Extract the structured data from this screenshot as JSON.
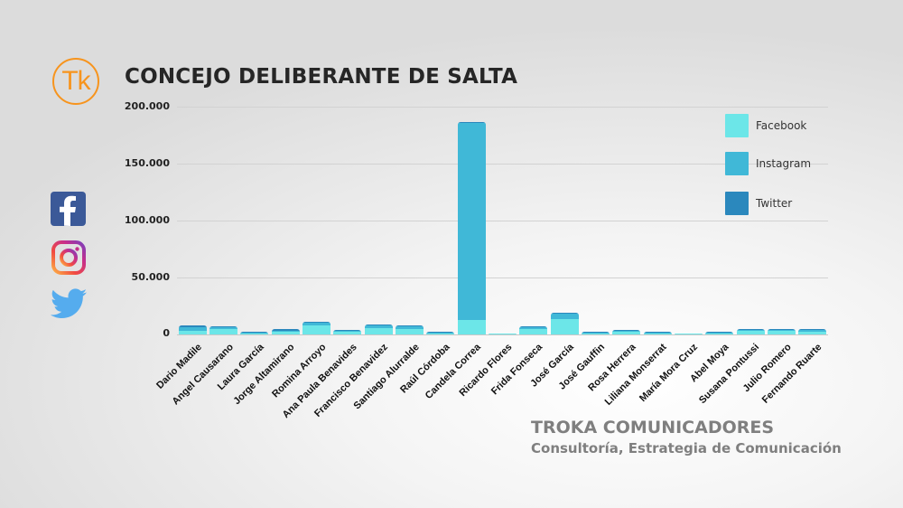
{
  "header": {
    "logo_text": "Tk",
    "title": "CONCEJO DELIBERANTE DE SALTA"
  },
  "social_icons": [
    "facebook-icon",
    "instagram-icon",
    "twitter-icon"
  ],
  "footer": {
    "company": "TROKA COMUNICADORES",
    "tagline": "Consultoría, Estrategia de Comunicación"
  },
  "colors": {
    "facebook": "#6ce6e8",
    "instagram": "#40b8d7",
    "twitter": "#2b88bd",
    "logo": "#f7941d",
    "title": "#262626",
    "footer": "#7f7f7f"
  },
  "legend": [
    {
      "label": "Facebook",
      "color": "#6ce6e8"
    },
    {
      "label": "Instagram",
      "color": "#40b8d7"
    },
    {
      "label": "Twitter",
      "color": "#2b88bd"
    }
  ],
  "yaxis": {
    "ticks": [
      "200.000",
      "150.000",
      "100.000",
      "50.000",
      "0"
    ]
  },
  "chart_data": {
    "type": "bar",
    "stacked": true,
    "title": "CONCEJO DELIBERANTE DE SALTA",
    "xlabel": "",
    "ylabel": "",
    "ylim": [
      0,
      200000
    ],
    "yticks": [
      0,
      50000,
      100000,
      150000,
      200000
    ],
    "grid": true,
    "legend_position": "right-top",
    "categories": [
      "Dario Madile",
      "Angel Causarano",
      "Laura García",
      "Jorge Altamirano",
      "Romina Arroyo",
      "Ana Paula Benavides",
      "Francisco Benavidez",
      "Santiago Alurralde",
      "Raúl Córdoba",
      "Candela Correa",
      "Ricardo Flores",
      "Frida Fonseca",
      "José García",
      "José Gauffin",
      "Rosa Herrera",
      "Liliana Monserrat",
      "María Mora Cruz",
      "Abel Moya",
      "Susana Pontussi",
      "Julio Romero",
      "Fernando Ruarte"
    ],
    "series": [
      {
        "name": "Facebook",
        "color": "#6ce6e8",
        "values": [
          3500,
          4500,
          1000,
          2000,
          8000,
          2500,
          5500,
          5000,
          500,
          13000,
          300,
          4500,
          13500,
          1000,
          2500,
          500,
          300,
          800,
          3000,
          3500,
          2500
        ]
      },
      {
        "name": "Instagram",
        "color": "#40b8d7",
        "values": [
          3000,
          2000,
          1000,
          1500,
          2000,
          1000,
          2500,
          2000,
          500,
          173000,
          0,
          1500,
          4500,
          500,
          500,
          300,
          0,
          500,
          1000,
          500,
          1500
        ]
      },
      {
        "name": "Twitter",
        "color": "#2b88bd",
        "values": [
          1500,
          500,
          200,
          1000,
          300,
          200,
          800,
          500,
          300,
          500,
          0,
          1500,
          1000,
          500,
          200,
          100,
          0,
          500,
          300,
          200,
          500
        ]
      }
    ]
  }
}
